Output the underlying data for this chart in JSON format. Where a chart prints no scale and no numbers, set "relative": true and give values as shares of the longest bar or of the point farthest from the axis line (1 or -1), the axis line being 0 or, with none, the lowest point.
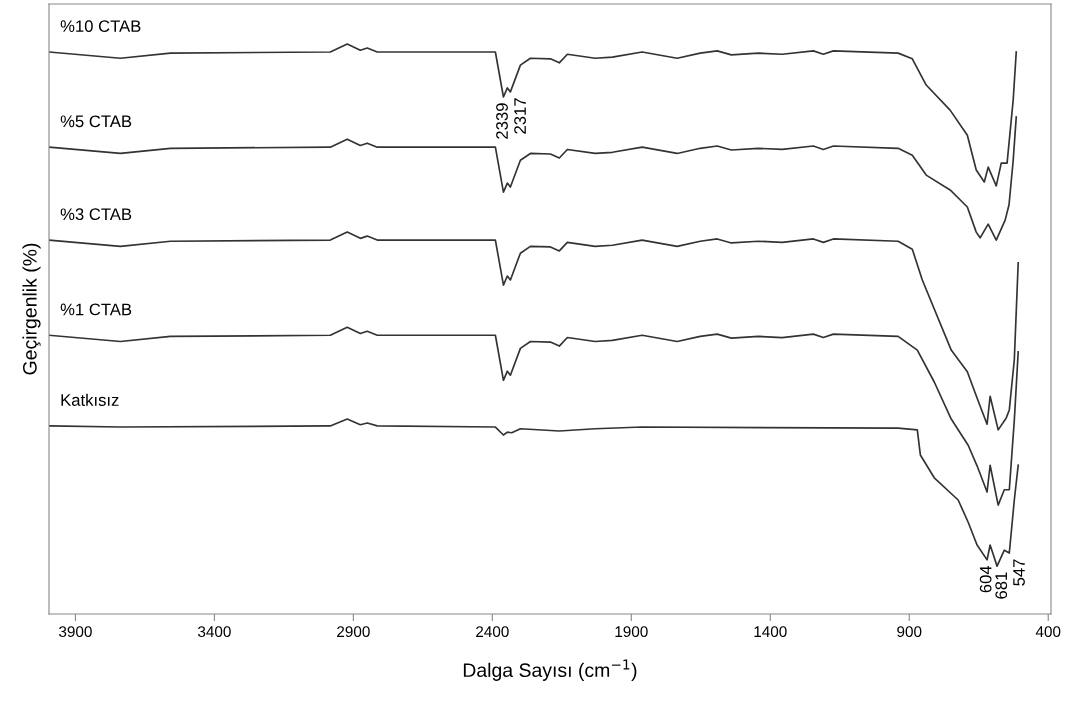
{
  "chart_data": {
    "type": "line",
    "relative": true,
    "xlabel": "Dalga Sayısı (cm$^{−1}$)",
    "ylabel": "Geçirgenlik (%)",
    "xlim": [
      3995,
      390
    ],
    "xticks": [
      3900,
      3400,
      2900,
      2400,
      1900,
      1400,
      900,
      400
    ],
    "tick_labels": "x",
    "grid": false,
    "legend": false,
    "marker": "none",
    "line_style": "solid",
    "series": [
      {
        "name": "%10 CTAB",
        "color": "#333333",
        "x": [
          3995,
          3738,
          3558,
          2983,
          2922,
          2875,
          2850,
          2814,
          2389,
          2360,
          2346,
          2335,
          2299,
          2263,
          2191,
          2159,
          2130,
          2030,
          1968,
          1861,
          1735,
          1652,
          1591,
          1540,
          1443,
          1357,
          1245,
          1209,
          1173,
          940,
          889,
          839,
          753,
          691,
          659,
          630,
          616,
          587,
          569,
          548,
          526,
          515
        ],
        "values": [
          0.986,
          0.975,
          0.984,
          0.986,
          1.0,
          0.989,
          0.993,
          0.986,
          0.986,
          0.907,
          0.923,
          0.916,
          0.963,
          0.975,
          0.974,
          0.967,
          0.982,
          0.975,
          0.977,
          0.986,
          0.975,
          0.984,
          0.988,
          0.981,
          0.984,
          0.982,
          0.988,
          0.982,
          0.988,
          0.984,
          0.974,
          0.928,
          0.884,
          0.84,
          0.779,
          0.758,
          0.784,
          0.751,
          0.791,
          0.791,
          0.902,
          0.986
        ]
      },
      {
        "name": "%5 CTAB",
        "color": "#333333",
        "x": [
          3995,
          3738,
          3558,
          2983,
          2922,
          2875,
          2850,
          2814,
          2389,
          2360,
          2346,
          2335,
          2299,
          2263,
          2191,
          2159,
          2130,
          2030,
          1968,
          1861,
          1735,
          1652,
          1591,
          1540,
          1443,
          1357,
          1245,
          1209,
          1173,
          940,
          889,
          839,
          753,
          691,
          659,
          645,
          616,
          587,
          555,
          541,
          526,
          515
        ],
        "values": [
          0.819,
          0.808,
          0.817,
          0.819,
          0.833,
          0.822,
          0.826,
          0.819,
          0.819,
          0.74,
          0.756,
          0.749,
          0.796,
          0.808,
          0.807,
          0.8,
          0.815,
          0.808,
          0.81,
          0.819,
          0.808,
          0.817,
          0.821,
          0.814,
          0.817,
          0.815,
          0.821,
          0.815,
          0.821,
          0.817,
          0.805,
          0.77,
          0.744,
          0.714,
          0.67,
          0.66,
          0.684,
          0.656,
          0.691,
          0.718,
          0.796,
          0.872
        ]
      },
      {
        "name": "%3 CTAB",
        "color": "#333333",
        "x": [
          3995,
          3738,
          3558,
          2983,
          2922,
          2875,
          2850,
          2814,
          2389,
          2360,
          2346,
          2335,
          2299,
          2263,
          2191,
          2159,
          2130,
          2030,
          1968,
          1861,
          1735,
          1652,
          1591,
          1540,
          1443,
          1357,
          1245,
          1209,
          1173,
          940,
          889,
          853,
          749,
          691,
          656,
          620,
          609,
          580,
          551,
          540,
          522,
          508
        ],
        "values": [
          0.656,
          0.645,
          0.654,
          0.656,
          0.67,
          0.659,
          0.663,
          0.656,
          0.656,
          0.577,
          0.593,
          0.586,
          0.633,
          0.645,
          0.644,
          0.637,
          0.652,
          0.645,
          0.647,
          0.656,
          0.645,
          0.654,
          0.658,
          0.651,
          0.654,
          0.652,
          0.658,
          0.652,
          0.658,
          0.654,
          0.64,
          0.586,
          0.463,
          0.425,
          0.379,
          0.333,
          0.382,
          0.323,
          0.344,
          0.358,
          0.446,
          0.616
        ]
      },
      {
        "name": "%1 CTAB",
        "color": "#333333",
        "x": [
          3995,
          3738,
          3558,
          2983,
          2922,
          2875,
          2850,
          2814,
          2389,
          2360,
          2346,
          2335,
          2299,
          2263,
          2191,
          2159,
          2130,
          2030,
          1968,
          1861,
          1735,
          1652,
          1591,
          1540,
          1443,
          1357,
          1245,
          1209,
          1173,
          940,
          871,
          810,
          749,
          688,
          656,
          620,
          609,
          580,
          558,
          540,
          522,
          508
        ],
        "values": [
          0.489,
          0.478,
          0.487,
          0.489,
          0.503,
          0.492,
          0.496,
          0.489,
          0.489,
          0.41,
          0.426,
          0.419,
          0.466,
          0.478,
          0.477,
          0.47,
          0.485,
          0.478,
          0.48,
          0.489,
          0.478,
          0.487,
          0.491,
          0.484,
          0.487,
          0.485,
          0.491,
          0.485,
          0.491,
          0.487,
          0.463,
          0.407,
          0.342,
          0.296,
          0.26,
          0.214,
          0.261,
          0.191,
          0.218,
          0.218,
          0.34,
          0.46
        ]
      },
      {
        "name": "Katkısız",
        "color": "#333333",
        "x": [
          3995,
          3738,
          2983,
          2922,
          2875,
          2850,
          2814,
          2389,
          2360,
          2346,
          2330,
          2299,
          2159,
          2030,
          1861,
          940,
          871,
          860,
          810,
          724,
          688,
          656,
          620,
          609,
          584,
          558,
          540,
          522,
          508
        ],
        "values": [
          0.33,
          0.328,
          0.33,
          0.342,
          0.332,
          0.335,
          0.33,
          0.328,
          0.314,
          0.319,
          0.318,
          0.325,
          0.321,
          0.325,
          0.328,
          0.326,
          0.323,
          0.279,
          0.239,
          0.2,
          0.161,
          0.121,
          0.095,
          0.121,
          0.084,
          0.112,
          0.107,
          0.2,
          0.261
        ]
      }
    ],
    "annotations": [
      {
        "text": "2339",
        "x": 2360,
        "y": 0.907
      },
      {
        "text": "2317",
        "x": 2335,
        "y": 0.916
      },
      {
        "text": "604",
        "x": 620,
        "y": 0.095
      },
      {
        "text": "681",
        "x": 584,
        "y": 0.084
      },
      {
        "text": "547",
        "x": 540,
        "y": 0.107
      }
    ]
  }
}
